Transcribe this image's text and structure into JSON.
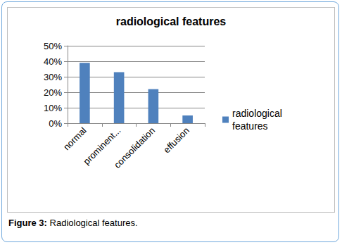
{
  "chart_data": {
    "type": "bar",
    "title": "radiological features",
    "categories": [
      "normal",
      "prominent...",
      "consolidation",
      "effusion"
    ],
    "series": [
      {
        "name": "radiological features",
        "color": "#4f81bd",
        "values": [
          39,
          33,
          22,
          5
        ]
      }
    ],
    "ylim": [
      0,
      50
    ],
    "yticks": [
      {
        "value": 0,
        "label": "0%"
      },
      {
        "value": 10,
        "label": "10%"
      },
      {
        "value": 20,
        "label": "20%"
      },
      {
        "value": 30,
        "label": "30%"
      },
      {
        "value": 40,
        "label": "40%"
      },
      {
        "value": 50,
        "label": "50%"
      }
    ],
    "grid": true,
    "legend": "right",
    "data_labels": false
  },
  "caption": {
    "label": "Figure 3:",
    "text": "Radiological features."
  }
}
